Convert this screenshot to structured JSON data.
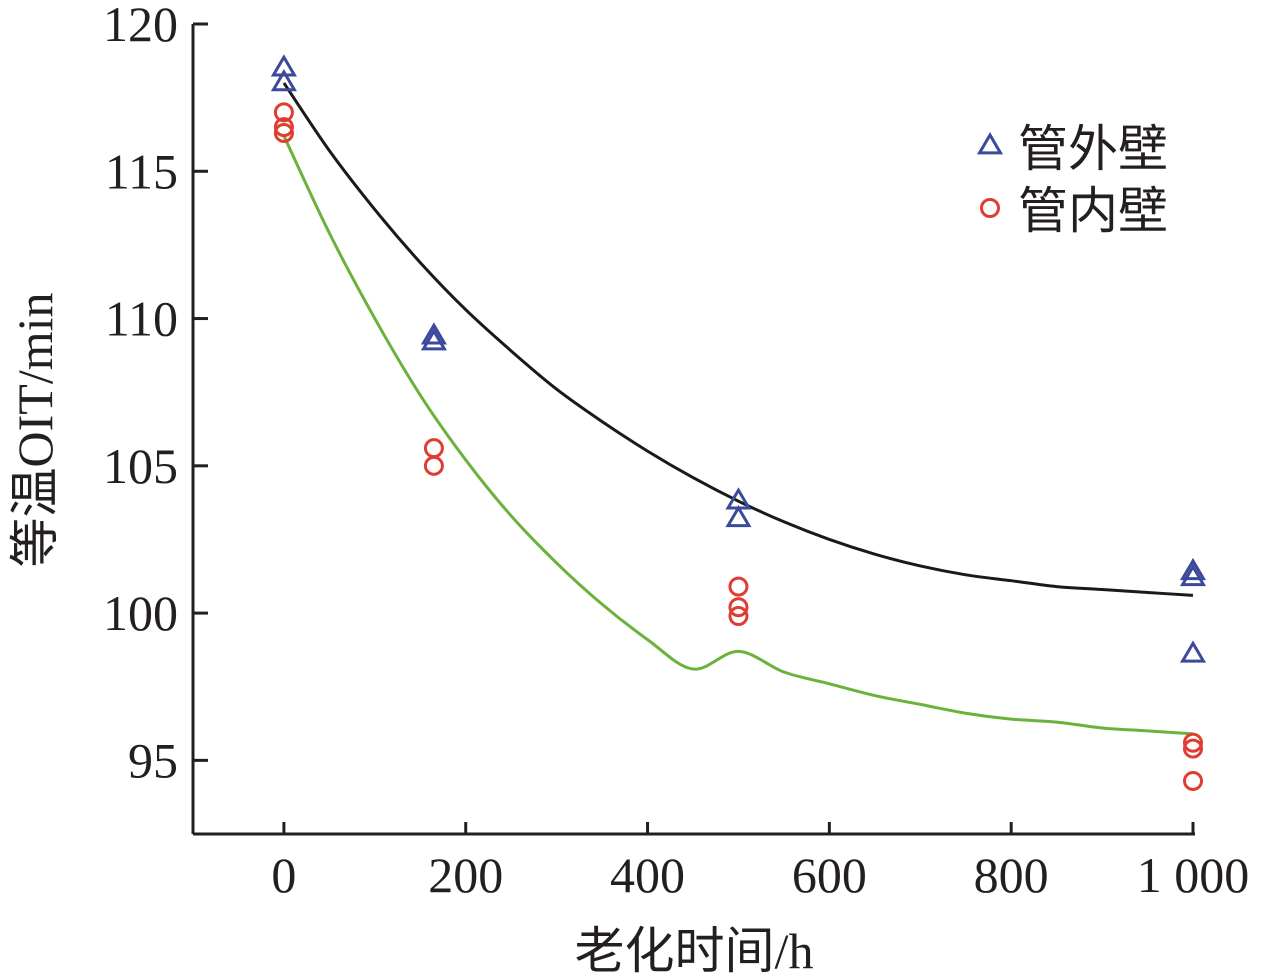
{
  "chart_data": {
    "type": "scatter",
    "xlabel": "老化时间/h",
    "ylabel": "等温OIT/min",
    "xlim": [
      -100,
      1000
    ],
    "ylim": [
      92.5,
      120
    ],
    "x_ticks": [
      0,
      200,
      400,
      600,
      800,
      1000
    ],
    "x_tick_labels": [
      "0",
      "200",
      "400",
      "600",
      "800",
      "1 000"
    ],
    "y_ticks": [
      95,
      100,
      105,
      110,
      115,
      120
    ],
    "y_tick_labels": [
      "95",
      "100",
      "105",
      "110",
      "115",
      "120"
    ],
    "grid": false,
    "legend_position": "top-right",
    "series": [
      {
        "name": "管外壁",
        "marker": "triangle",
        "color": "#3b4a9a",
        "x": [
          0,
          0,
          165,
          165,
          500,
          500,
          1000,
          1000,
          1000
        ],
        "y": [
          118.5,
          118.0,
          109.4,
          109.2,
          103.8,
          103.2,
          101.4,
          101.2,
          98.6
        ]
      },
      {
        "name": "管内壁",
        "marker": "circle",
        "color": "#e03c31",
        "x": [
          0,
          0,
          0,
          165,
          165,
          500,
          500,
          500,
          1000,
          1000,
          1000
        ],
        "y": [
          117.0,
          116.5,
          116.3,
          105.6,
          105.0,
          100.9,
          100.2,
          99.9,
          95.6,
          95.4,
          94.3
        ]
      }
    ],
    "fit_curves": [
      {
        "for_series": "管外壁",
        "color": "#1a1a1a",
        "x": [
          0,
          50,
          100,
          150,
          200,
          250,
          300,
          350,
          400,
          450,
          500,
          550,
          600,
          650,
          700,
          750,
          800,
          850,
          900,
          950,
          1000
        ],
        "y": [
          118.0,
          115.7,
          113.7,
          111.9,
          110.3,
          108.9,
          107.6,
          106.5,
          105.5,
          104.6,
          103.8,
          103.1,
          102.5,
          102.0,
          101.6,
          101.3,
          101.1,
          100.9,
          100.8,
          100.7,
          100.6
        ]
      },
      {
        "for_series": "管内壁",
        "color": "#6ab23c",
        "x": [
          0,
          50,
          100,
          150,
          200,
          250,
          300,
          350,
          400,
          450,
          500,
          550,
          600,
          650,
          700,
          750,
          800,
          850,
          900,
          950,
          1000
        ],
        "y": [
          116.2,
          112.9,
          110.0,
          107.4,
          105.2,
          103.3,
          101.7,
          100.3,
          99.1,
          98.1,
          98.7,
          98.0,
          97.6,
          97.2,
          96.9,
          96.6,
          96.4,
          96.3,
          96.1,
          96.0,
          95.9
        ]
      }
    ]
  }
}
